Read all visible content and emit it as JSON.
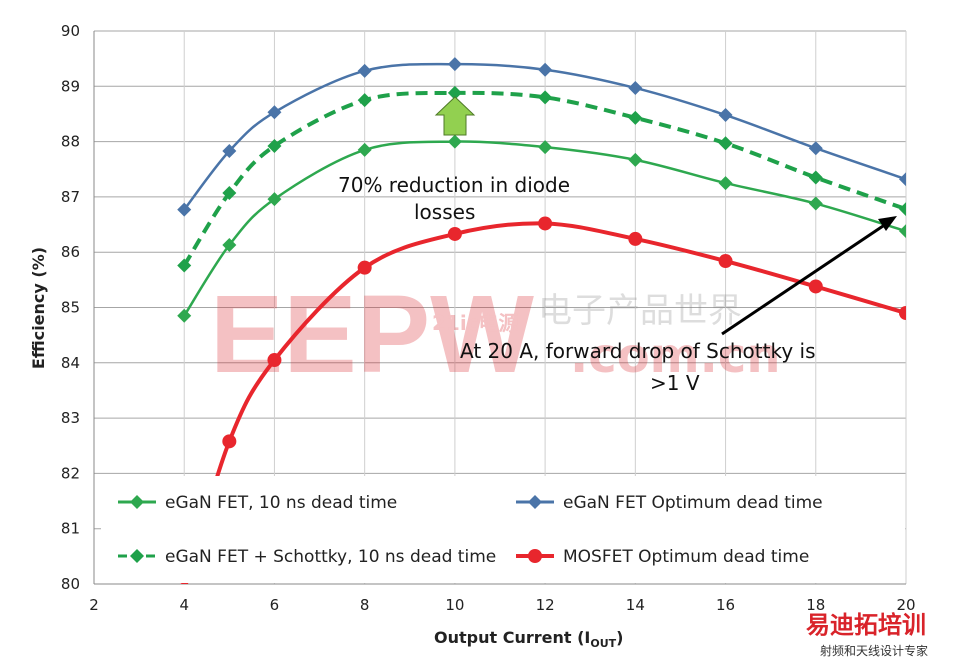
{
  "chart_data": {
    "type": "line",
    "title": "",
    "xlabel": "Output Current (I",
    "xlabel_sub": "OUT",
    "xlabel_end": ")",
    "ylabel": "Efficiency (%)",
    "xlim": [
      2,
      20
    ],
    "ylim": [
      80,
      90
    ],
    "xticks": [
      2,
      4,
      6,
      8,
      10,
      12,
      14,
      16,
      18,
      20
    ],
    "yticks": [
      80,
      81,
      82,
      83,
      84,
      85,
      86,
      87,
      88,
      89,
      90
    ],
    "grid": true,
    "legend_position": "bottom-inside",
    "x": [
      4,
      5,
      6,
      8,
      10,
      12,
      14,
      16,
      18,
      20
    ],
    "series": [
      {
        "name": "eGaN FET, 10 ns dead time",
        "color": "#2ea84f",
        "style": "solid",
        "marker": "diamond",
        "values": [
          84.85,
          86.13,
          86.96,
          87.85,
          88.0,
          87.9,
          87.67,
          87.25,
          86.88,
          86.38
        ]
      },
      {
        "name": "eGaN FET Optimum dead time",
        "color": "#4a74a8",
        "style": "solid",
        "marker": "diamond",
        "values": [
          86.77,
          87.83,
          88.53,
          89.28,
          89.4,
          89.3,
          88.97,
          88.48,
          87.88,
          87.32
        ]
      },
      {
        "name": "eGaN FET + Schottky, 10 ns dead time",
        "color": "#1fa14a",
        "style": "dashed",
        "marker": "diamond",
        "values": [
          85.76,
          87.07,
          87.92,
          88.75,
          88.88,
          88.8,
          88.43,
          87.97,
          87.35,
          86.78
        ]
      },
      {
        "name": "MOSFET Optimum dead time",
        "color": "#e8262d",
        "style": "solid",
        "marker": "circle",
        "values": [
          79.9,
          82.58,
          84.05,
          85.72,
          86.33,
          86.52,
          86.24,
          85.84,
          85.38,
          84.9
        ]
      }
    ],
    "annotations": {
      "diode_line1": "70% reduction in diode",
      "diode_line2": "losses",
      "schottky_line1": "At 20 A, forward drop of Schottky is",
      "schottky_line2": ">1 V"
    }
  },
  "watermark": {
    "text": "EEPW",
    "sub": "21ic电源",
    "sub2": ".com.cn",
    "site": "电子产品世界"
  },
  "corner_logo": {
    "main": "易迪拓培训",
    "sub": "射频和天线设计专家"
  }
}
